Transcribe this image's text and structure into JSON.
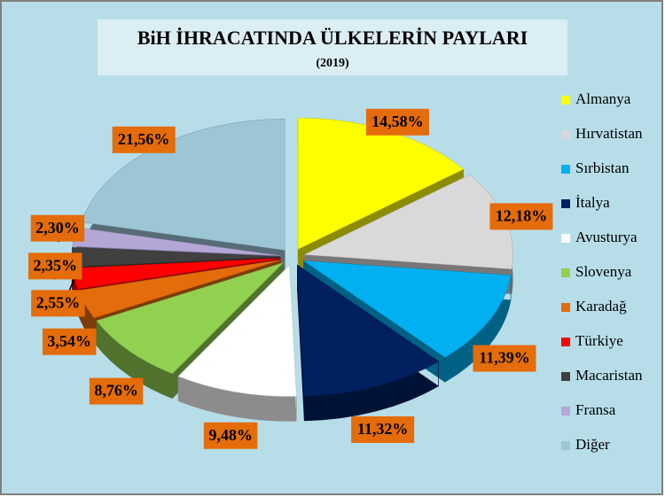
{
  "chart_data": {
    "type": "pie3d",
    "title": "BiH İHRACATINDA ÜLKELERİN PAYLARI",
    "subtitle": "(2019)",
    "categories": [
      "Almanya",
      "Hırvatistan",
      "Sırbistan",
      "İtalya",
      "Avusturya",
      "Slovenya",
      "Karadağ",
      "Türkiye",
      "Macaristan",
      "Fransa",
      "Diğer"
    ],
    "values": [
      14.58,
      12.18,
      11.39,
      11.32,
      9.48,
      8.76,
      3.54,
      2.55,
      2.35,
      2.3,
      21.56
    ],
    "value_labels": [
      "14,58%",
      "12,18%",
      "11,39%",
      "11,32%",
      "9,48%",
      "8,76%",
      "3,54%",
      "2,55%",
      "2,35%",
      "2,30%",
      "21,56%"
    ],
    "colors": [
      "#ffff00",
      "#d9d9d9",
      "#00b0f0",
      "#002060",
      "#ffffff",
      "#92d050",
      "#e46c0a",
      "#ff0000",
      "#404040",
      "#b4a7d6",
      "#9cc5d6"
    ],
    "label_color": "#e46c0a",
    "legend": "right"
  }
}
